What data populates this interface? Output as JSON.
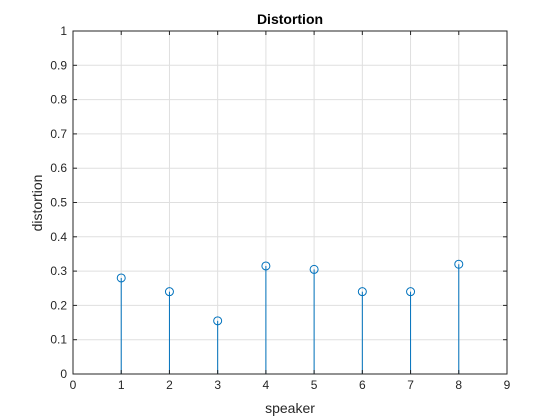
{
  "chart_data": {
    "type": "stem",
    "title": "Distortion",
    "xlabel": "speaker",
    "ylabel": "distortion",
    "xlim": [
      0,
      9
    ],
    "ylim": [
      0,
      1
    ],
    "xticks": [
      0,
      1,
      2,
      3,
      4,
      5,
      6,
      7,
      8,
      9
    ],
    "yticks": [
      0,
      0.1,
      0.2,
      0.3,
      0.4,
      0.5,
      0.6,
      0.7,
      0.8,
      0.9,
      1
    ],
    "ytick_labels": [
      "0",
      "0.1",
      "0.2",
      "0.3",
      "0.4",
      "0.5",
      "0.6",
      "0.7",
      "0.8",
      "0.9",
      "1"
    ],
    "grid": true,
    "x": [
      1,
      2,
      3,
      4,
      5,
      6,
      7,
      8
    ],
    "y": [
      0.28,
      0.24,
      0.155,
      0.315,
      0.305,
      0.24,
      0.24,
      0.32
    ],
    "series_color": "#0072BD"
  }
}
